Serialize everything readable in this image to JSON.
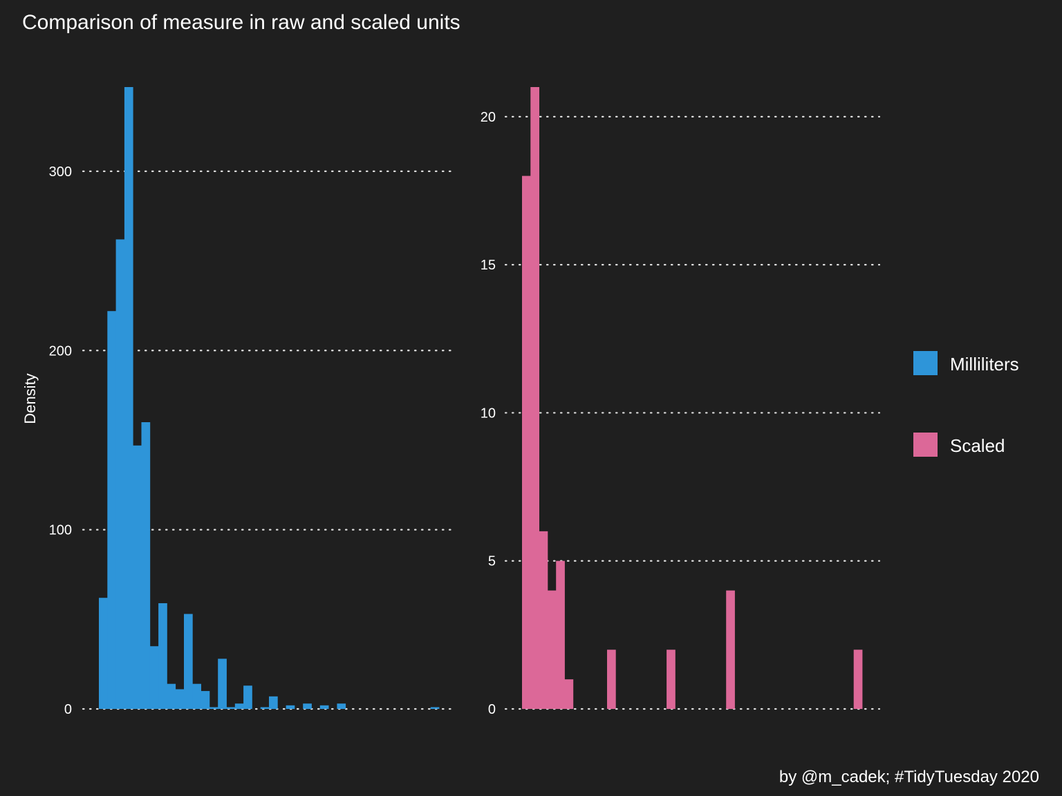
{
  "title": "Comparison of measure in raw and scaled units",
  "caption": "by @m_cadek; #TidyTuesday 2020",
  "ylabel": "Density",
  "legend": {
    "position": "right",
    "items": [
      {
        "label": "Milliliters",
        "color": "#2e95d9"
      },
      {
        "label": "Scaled",
        "color": "#dc6898"
      }
    ]
  },
  "chart_data": [
    {
      "type": "bar",
      "name": "Milliliters",
      "color": "#2e95d9",
      "ylim": [
        0,
        347
      ],
      "yticks": [
        0,
        100,
        200,
        300
      ],
      "ytick_labels": [
        "0",
        "100",
        "200",
        "300"
      ],
      "xlabel": "",
      "ylabel": "Density",
      "values": [
        62,
        222,
        262,
        347,
        147,
        160,
        35,
        59,
        14,
        11,
        53,
        14,
        10,
        1,
        28,
        1,
        3,
        13,
        0,
        1,
        7,
        0,
        2,
        0,
        3,
        0,
        2,
        0,
        3,
        0,
        0,
        0,
        0,
        0,
        0,
        0,
        0,
        0,
        0,
        1
      ]
    },
    {
      "type": "bar",
      "name": "Scaled",
      "color": "#dc6898",
      "ylim": [
        0,
        21
      ],
      "yticks": [
        0,
        5,
        10,
        15,
        20
      ],
      "ytick_labels": [
        "0",
        "5",
        "10",
        "15",
        "20"
      ],
      "xlabel": "",
      "ylabel": "",
      "values": [
        18,
        21,
        6,
        4,
        5,
        1,
        0,
        0,
        0,
        0,
        2,
        0,
        0,
        0,
        0,
        0,
        0,
        2,
        0,
        0,
        0,
        0,
        0,
        0,
        4,
        0,
        0,
        0,
        0,
        0,
        0,
        0,
        0,
        0,
        0,
        0,
        0,
        0,
        0,
        2
      ]
    }
  ]
}
